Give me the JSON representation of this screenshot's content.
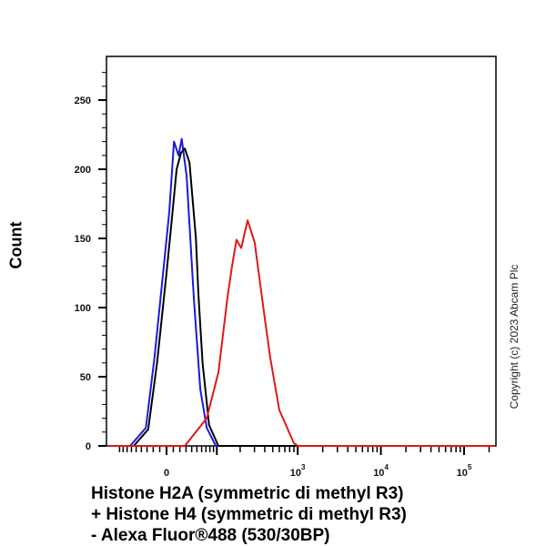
{
  "chart_data": {
    "type": "line",
    "subtype": "flow-cytometry-histogram",
    "xlabel_lines": [
      "Histone H2A (symmetric di methyl R3)",
      "+ Histone H4 (symmetric di methyl R3)",
      "- Alexa Fluor®488 (530/30BP)"
    ],
    "ylabel": "Count",
    "x_scale": "biexponential",
    "x_ticks": [
      {
        "value": 0,
        "base": "0",
        "exp": ""
      },
      {
        "value": 1000,
        "base": "10",
        "exp": "3"
      },
      {
        "value": 10000,
        "base": "10",
        "exp": "4"
      },
      {
        "value": 100000,
        "base": "10",
        "exp": "5"
      }
    ],
    "ylim": [
      0,
      275
    ],
    "y_ticks": [
      0,
      50,
      100,
      150,
      200,
      250
    ],
    "grid": false,
    "legend": "none",
    "series": [
      {
        "color": "#1a1adf",
        "x": [
          -63,
          -32,
          -18,
          -4,
          4,
          11,
          18,
          23,
          31,
          44,
          57,
          72,
          97
        ],
        "y": [
          0,
          13,
          64,
          130,
          169,
          220,
          210,
          222,
          195,
          107,
          41,
          13,
          0
        ]
      },
      {
        "color": "#000000",
        "x": [
          -55,
          -28,
          -14,
          0,
          8,
          15,
          22,
          28,
          36,
          48,
          53,
          62,
          78,
          105
        ],
        "y": [
          0,
          12,
          60,
          125,
          165,
          200,
          212,
          215,
          205,
          150,
          110,
          60,
          15,
          0
        ]
      },
      {
        "color": "#e01818",
        "x": [
          28,
          72,
          105,
          138,
          158,
          180,
          206,
          247,
          302,
          391,
          466,
          600,
          901,
          1000
        ],
        "y": [
          0,
          20,
          53,
          107,
          130,
          149,
          143,
          163,
          147,
          97,
          64,
          26,
          2,
          0
        ]
      }
    ]
  },
  "watermark": "Copyright (c) 2023 Abcam Plc"
}
